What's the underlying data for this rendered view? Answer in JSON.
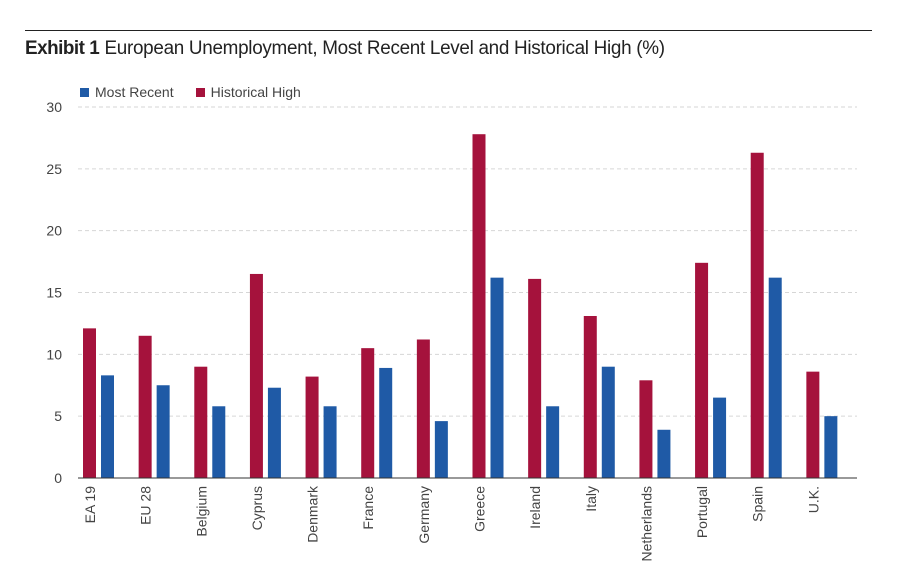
{
  "title": {
    "exhibit": "Exhibit 1",
    "text": "European Unemployment, Most Recent Level and Historical High (%)"
  },
  "colors": {
    "most_recent": "#1f5aa6",
    "historical_high": "#a5123c",
    "grid": "#d6d6d6",
    "axis": "#333333"
  },
  "chart_data": {
    "type": "bar",
    "categories": [
      "EA 19",
      "EU 28",
      "Belgium",
      "Cyprus",
      "Denmark",
      "France",
      "Germany",
      "Greece",
      "Ireland",
      "Italy",
      "Netherlands",
      "Portugal",
      "Spain",
      "U.K."
    ],
    "series": [
      {
        "name": "Historical High",
        "values": [
          12.1,
          11.5,
          9.0,
          16.5,
          8.2,
          10.5,
          11.2,
          27.8,
          16.1,
          13.1,
          7.9,
          17.4,
          26.3,
          8.6
        ]
      },
      {
        "name": "Most Recent",
        "values": [
          8.3,
          7.5,
          5.8,
          7.3,
          5.8,
          8.9,
          4.6,
          16.2,
          5.8,
          9.0,
          3.9,
          6.5,
          16.2,
          5.0
        ]
      }
    ],
    "legend": [
      "Most Recent",
      "Historical High"
    ],
    "yticks": [
      "0",
      "5",
      "10",
      "15",
      "20",
      "25",
      "30"
    ],
    "ylim": [
      0,
      30
    ],
    "grid": true,
    "legend_position": "top-left"
  }
}
